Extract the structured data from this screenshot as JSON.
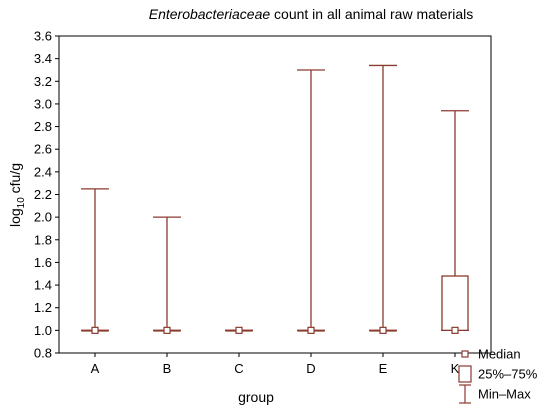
{
  "chart_data": {
    "type": "box",
    "title_italic": "Enterobacteriaceae",
    "title_rest": " count in all animal raw materials",
    "xlabel": "group",
    "ylabel_main": "log",
    "ylabel_sub": "10",
    "ylabel_rest": " cfu/g",
    "ylim": [
      0.8,
      3.6
    ],
    "yticks": [
      "0.8",
      "1.0",
      "1.2",
      "1.4",
      "1.6",
      "1.8",
      "2.0",
      "2.2",
      "2.4",
      "2.6",
      "2.8",
      "3.0",
      "3.2",
      "3.4",
      "3.6"
    ],
    "categories": [
      "A",
      "B",
      "C",
      "D",
      "E",
      "K"
    ],
    "boxes": [
      {
        "group": "A",
        "min": 1.0,
        "q1": 1.0,
        "median": 1.0,
        "q3": 1.0,
        "max": 2.25
      },
      {
        "group": "B",
        "min": 1.0,
        "q1": 1.0,
        "median": 1.0,
        "q3": 1.0,
        "max": 2.0
      },
      {
        "group": "C",
        "min": 1.0,
        "q1": 1.0,
        "median": 1.0,
        "q3": 1.0,
        "max": 1.0
      },
      {
        "group": "D",
        "min": 1.0,
        "q1": 1.0,
        "median": 1.0,
        "q3": 1.0,
        "max": 3.3
      },
      {
        "group": "E",
        "min": 1.0,
        "q1": 1.0,
        "median": 1.0,
        "q3": 1.0,
        "max": 3.34
      },
      {
        "group": "K",
        "min": 1.0,
        "q1": 1.0,
        "median": 1.0,
        "q3": 1.48,
        "max": 2.94
      }
    ],
    "legend": [
      {
        "key": "median",
        "label": "Median"
      },
      {
        "key": "box",
        "label": "25%–75%"
      },
      {
        "key": "whisker",
        "label": "Min–Max"
      }
    ],
    "legend_position": "bottom-right",
    "grid": false,
    "colors": {
      "mark": "#8b3a2f",
      "axis": "#000000"
    }
  }
}
